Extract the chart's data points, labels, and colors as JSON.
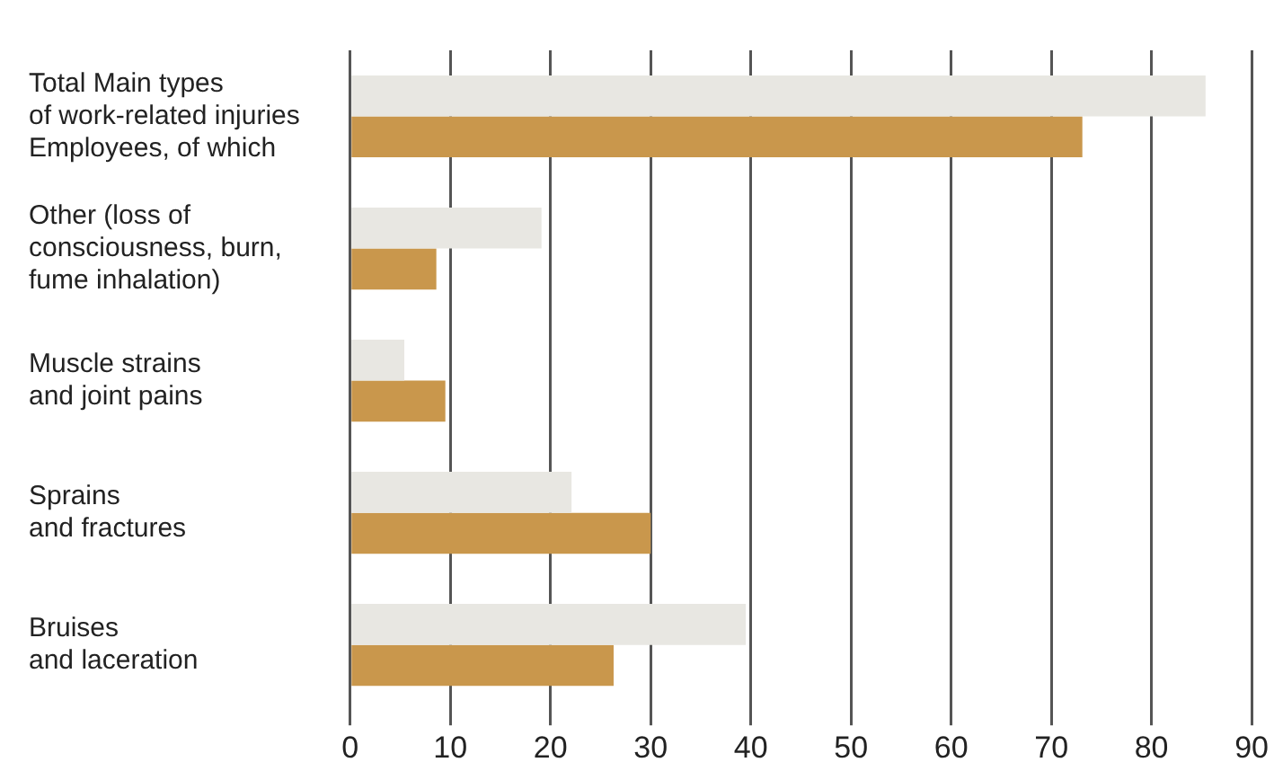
{
  "chart_data": {
    "type": "bar",
    "orientation": "horizontal",
    "categories": [
      "Total Main types\nof work-related injuries\nEmployees, of which",
      "Other (loss of\nconsciousness, burn,\nfume inhalation)",
      "Muscle strains\nand joint pains",
      "Sprains\nand fractures",
      "Bruises\nand laceration"
    ],
    "series": [
      {
        "color": "#e8e7e2",
        "values": [
          85.4,
          19.1,
          5.4,
          22.1,
          39.5
        ]
      },
      {
        "color": "#c9974c",
        "values": [
          73.1,
          8.6,
          9.5,
          30.0,
          26.3
        ]
      }
    ],
    "xlim": [
      0,
      90
    ],
    "xticks": [
      0,
      10,
      20,
      30,
      40,
      50,
      60,
      70,
      80,
      90
    ],
    "grid": "x",
    "legend": false
  }
}
